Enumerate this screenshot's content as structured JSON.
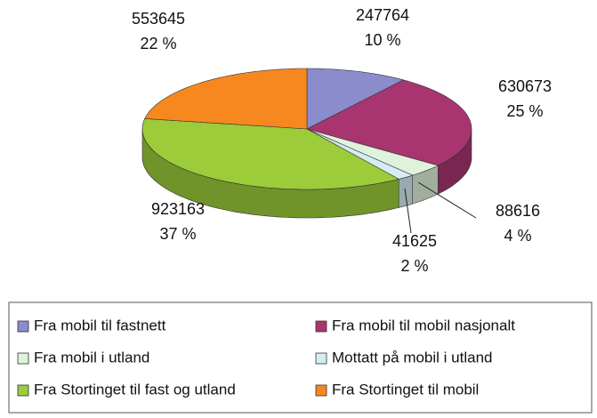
{
  "chart_data": {
    "type": "pie",
    "categories": [
      "Fra mobil til fastnett",
      "Fra mobil til mobil nasjonalt",
      "Fra mobil i utland",
      "Mottatt på mobil i utland",
      "Fra Stortinget til fast og utland",
      "Fra Stortinget til mobil"
    ],
    "values": [
      247764,
      630673,
      88616,
      41625,
      923163,
      553645
    ],
    "percent_labels": [
      "10 %",
      "25 %",
      "4 %",
      "2 %",
      "37 %",
      "22 %"
    ],
    "colors": [
      "#8a8ccc",
      "#a8356f",
      "#dff2dc",
      "#d4edf2",
      "#9ccc3a",
      "#f7871f"
    ],
    "legend": "bottom"
  }
}
